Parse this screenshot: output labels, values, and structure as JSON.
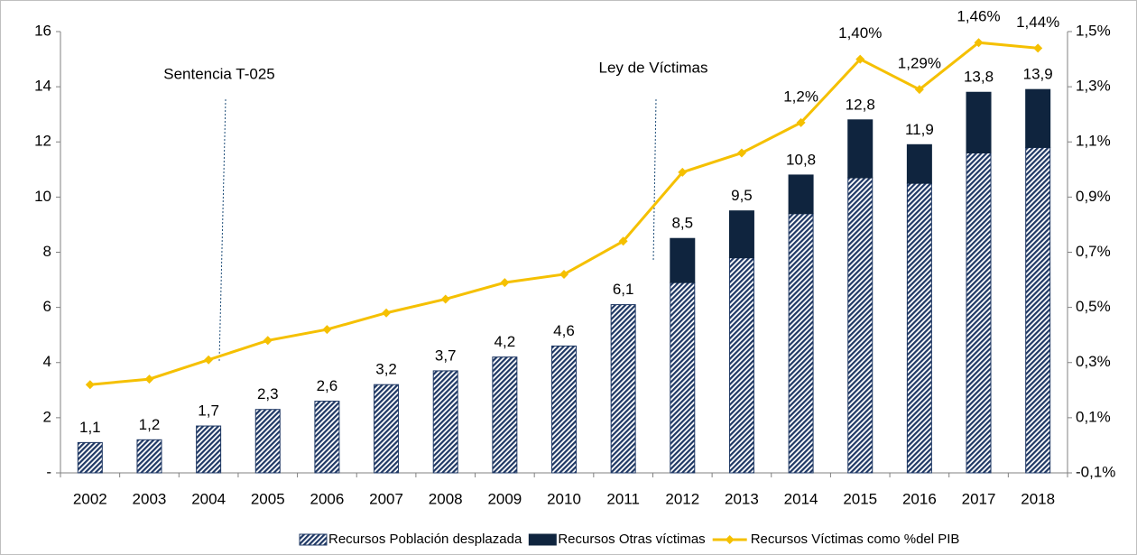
{
  "chart_data": {
    "type": "bar",
    "stacked": true,
    "categories": [
      "2002",
      "2003",
      "2004",
      "2005",
      "2006",
      "2007",
      "2008",
      "2009",
      "2010",
      "2011",
      "2012",
      "2013",
      "2014",
      "2015",
      "2016",
      "2017",
      "2018"
    ],
    "series": [
      {
        "name": "Recursos Población desplazada",
        "color": "#1f3864",
        "pattern": "hatch",
        "values": [
          1.1,
          1.2,
          1.7,
          2.3,
          2.6,
          3.2,
          3.7,
          4.2,
          4.6,
          6.1,
          6.9,
          7.8,
          9.4,
          10.7,
          10.5,
          11.6,
          11.8
        ]
      },
      {
        "name": "Recursos Otras víctimas",
        "color": "#0f243e",
        "values": [
          null,
          null,
          null,
          null,
          null,
          null,
          null,
          null,
          null,
          null,
          1.6,
          1.7,
          1.4,
          2.1,
          1.4,
          2.2,
          2.1
        ]
      },
      {
        "name": "Recursos Víctimas como %del PIB",
        "color": "#f5c000",
        "type": "line",
        "axis": "y2",
        "values": [
          0.22,
          0.24,
          0.31,
          0.38,
          0.42,
          0.48,
          0.53,
          0.59,
          0.62,
          0.74,
          0.99,
          1.06,
          1.17,
          1.4,
          1.29,
          1.46,
          1.44
        ],
        "value_labels": [
          null,
          null,
          null,
          null,
          null,
          null,
          null,
          null,
          null,
          null,
          null,
          null,
          "1,2%",
          "1,40%",
          "1,29%",
          "1,46%",
          "1,44%"
        ]
      }
    ],
    "totals": {
      "values": [
        1.1,
        1.2,
        1.7,
        2.3,
        2.6,
        3.2,
        3.7,
        4.2,
        4.6,
        6.1,
        8.5,
        9.5,
        10.8,
        12.8,
        11.9,
        13.8,
        13.9
      ],
      "value_labels": [
        "1,1",
        "1,2",
        "1,7",
        "2,3",
        "2,6",
        "3,2",
        "3,7",
        "4,2",
        "4,6",
        "6,1",
        "8,5",
        "9,5",
        "10,8",
        "12,8",
        "11,9",
        "13,8",
        "13,9"
      ]
    },
    "annotations": [
      "Sentencia T-025",
      "Ley de Víctimas"
    ],
    "ylim": [
      0,
      16
    ],
    "yticks": [
      {
        "value": 0,
        "label": "-"
      },
      2,
      4,
      6,
      8,
      10,
      12,
      14,
      16
    ],
    "y2lim": [
      -0.1,
      1.5
    ],
    "y2ticks": [
      {
        "value": -0.1,
        "label": "-0,1%"
      },
      {
        "value": 0.1,
        "label": "0,1%"
      },
      {
        "value": 0.3,
        "label": "0,3%"
      },
      {
        "value": 0.5,
        "label": "0,5%"
      },
      {
        "value": 0.7,
        "label": "0,7%"
      },
      {
        "value": 0.9,
        "label": "0,9%"
      },
      {
        "value": 1.1,
        "label": "1,1%"
      },
      {
        "value": 1.3,
        "label": "1,3%"
      },
      {
        "value": 1.5,
        "label": "1,5%"
      }
    ],
    "grid": false,
    "legend": "bottom"
  }
}
